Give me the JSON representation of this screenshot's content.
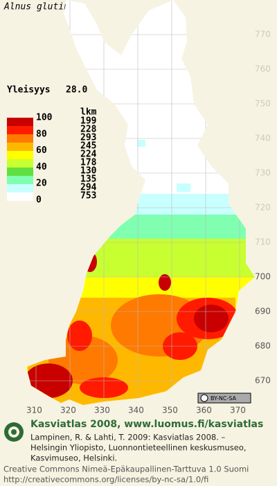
{
  "title": "Alnus glutinosa",
  "frequency": {
    "label": "Yleisyys",
    "value": "28.0"
  },
  "legend": {
    "count_header": "lkm",
    "scale_labels": [
      "100",
      "80",
      "60",
      "40",
      "20",
      "0"
    ],
    "colors": [
      "#c80000",
      "#ff1a00",
      "#ff7a00",
      "#ffb800",
      "#ffff00",
      "#c8ff30",
      "#60e040",
      "#80ffb0",
      "#c8ffff",
      "#ffffff"
    ],
    "counts": [
      "199",
      "228",
      "293",
      "245",
      "224",
      "178",
      "130",
      "135",
      "294",
      "753"
    ]
  },
  "grid": {
    "northings": [
      "770",
      "760",
      "750",
      "740",
      "730",
      "720",
      "710",
      "700",
      "690",
      "680",
      "670"
    ],
    "eastings": [
      "310",
      "320",
      "330",
      "340",
      "350",
      "360",
      "370"
    ]
  },
  "badge": "BY-NC-SA",
  "credits": {
    "heading": "Kasviatlas 2008, www.luomus.fi/kasviatlas",
    "citation": [
      "Lampinen, R. & Lahti, T. 2009: Kasviatlas 2008. –",
      "Helsingin Yliopisto, Luonnontieteellinen keskusmuseo,",
      "Kasvimuseo, Helsinki."
    ],
    "license": [
      "Creative Commons Nimeä-Epäkaupallinen-Tarttuva 1.0 Suomi",
      "http://creativecommons.org/licenses/by-nc-sa/1.0/fi"
    ]
  }
}
